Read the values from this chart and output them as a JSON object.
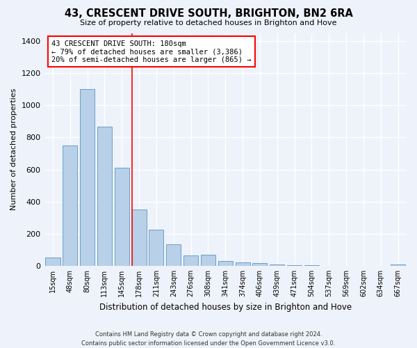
{
  "title": "43, CRESCENT DRIVE SOUTH, BRIGHTON, BN2 6RA",
  "subtitle": "Size of property relative to detached houses in Brighton and Hove",
  "xlabel": "Distribution of detached houses by size in Brighton and Hove",
  "ylabel": "Number of detached properties",
  "footer_line1": "Contains HM Land Registry data © Crown copyright and database right 2024.",
  "footer_line2": "Contains public sector information licensed under the Open Government Licence v3.0.",
  "bar_labels": [
    "15sqm",
    "48sqm",
    "80sqm",
    "113sqm",
    "145sqm",
    "178sqm",
    "211sqm",
    "243sqm",
    "276sqm",
    "308sqm",
    "341sqm",
    "374sqm",
    "406sqm",
    "439sqm",
    "471sqm",
    "504sqm",
    "537sqm",
    "569sqm",
    "602sqm",
    "634sqm",
    "667sqm"
  ],
  "bar_values": [
    50,
    750,
    1100,
    865,
    610,
    350,
    225,
    135,
    65,
    70,
    30,
    22,
    15,
    10,
    5,
    2,
    0,
    0,
    0,
    0,
    10
  ],
  "bar_color": "#b8d0e8",
  "bar_edge_color": "#6a9fc8",
  "background_color": "#eef2fa",
  "grid_color": "#ffffff",
  "annotation_box_text": "43 CRESCENT DRIVE SOUTH: 180sqm\n← 79% of detached houses are smaller (3,386)\n20% of semi-detached houses are larger (865) →",
  "annotation_box_color": "white",
  "annotation_box_edge_color": "red",
  "vline_color": "red",
  "vline_x_index": 5,
  "ylim": [
    0,
    1450
  ],
  "yticks": [
    0,
    200,
    400,
    600,
    800,
    1000,
    1200,
    1400
  ]
}
